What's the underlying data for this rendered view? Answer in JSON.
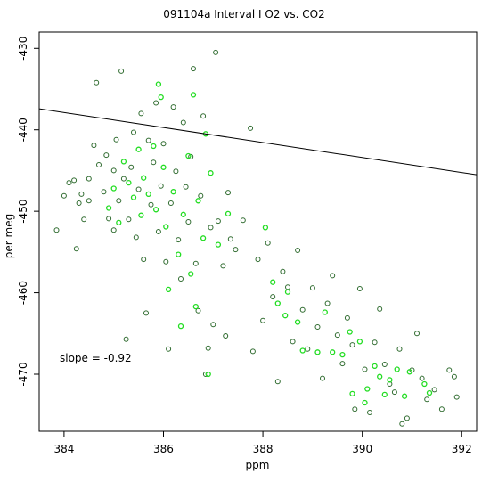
{
  "chart_data": {
    "type": "scatter",
    "title": "091104a   Interval I O2 vs. CO2",
    "xlabel": "ppm",
    "ylabel": "per meg",
    "xlim": [
      383.5,
      392.3
    ],
    "ylim": [
      -477,
      -428
    ],
    "xticks": [
      384,
      386,
      388,
      390,
      392
    ],
    "yticks": [
      -430,
      -440,
      -450,
      -460,
      -470
    ],
    "grid": false,
    "legend": "none",
    "annotation": "slope =  -0.92",
    "fit_line": {
      "slope": -0.92,
      "intercept": -84.6
    },
    "colors": {
      "dark_points": "#2f6b2f",
      "bright_points": "#22dd22",
      "fit_line": "#000000",
      "axes": "#000000"
    },
    "series": [
      {
        "color": "dark",
        "points": [
          [
            383.85,
            -452.3
          ],
          [
            384.0,
            -448.1
          ],
          [
            384.1,
            -446.5
          ],
          [
            384.2,
            -446.2
          ],
          [
            384.25,
            -454.6
          ],
          [
            384.3,
            -449.0
          ],
          [
            384.35,
            -447.9
          ],
          [
            384.4,
            -451.0
          ],
          [
            384.5,
            -446.0
          ],
          [
            384.5,
            -448.7
          ],
          [
            384.6,
            -441.9
          ],
          [
            384.65,
            -434.2
          ],
          [
            384.7,
            -444.3
          ],
          [
            384.8,
            -447.6
          ],
          [
            384.85,
            -443.1
          ],
          [
            384.9,
            -450.9
          ],
          [
            385.0,
            -445.0
          ],
          [
            385.0,
            -452.3
          ],
          [
            385.05,
            -441.2
          ],
          [
            385.1,
            -448.7
          ],
          [
            385.15,
            -432.8
          ],
          [
            385.2,
            -446.0
          ],
          [
            385.25,
            -465.7
          ],
          [
            385.3,
            -451.0
          ],
          [
            385.35,
            -444.6
          ],
          [
            385.4,
            -440.3
          ],
          [
            385.45,
            -453.2
          ],
          [
            385.5,
            -447.3
          ],
          [
            385.55,
            -438.0
          ],
          [
            385.6,
            -455.9
          ],
          [
            385.65,
            -462.5
          ],
          [
            385.7,
            -441.3
          ],
          [
            385.75,
            -449.2
          ],
          [
            385.8,
            -444.0
          ],
          [
            385.85,
            -436.7
          ],
          [
            385.9,
            -452.5
          ],
          [
            385.95,
            -446.9
          ],
          [
            386.0,
            -441.7
          ],
          [
            386.05,
            -456.2
          ],
          [
            386.1,
            -466.9
          ],
          [
            386.15,
            -449.0
          ],
          [
            386.2,
            -437.2
          ],
          [
            386.25,
            -445.1
          ],
          [
            386.3,
            -453.5
          ],
          [
            386.35,
            -458.3
          ],
          [
            386.4,
            -439.1
          ],
          [
            386.45,
            -447.0
          ],
          [
            386.5,
            -451.3
          ],
          [
            386.55,
            -443.3
          ],
          [
            386.6,
            -432.5
          ],
          [
            386.65,
            -456.4
          ],
          [
            386.7,
            -462.2
          ],
          [
            386.75,
            -448.1
          ],
          [
            386.8,
            -438.3
          ],
          [
            386.85,
            -470.0
          ],
          [
            386.9,
            -466.8
          ],
          [
            386.95,
            -452.0
          ],
          [
            387.0,
            -463.9
          ],
          [
            387.05,
            -430.5
          ],
          [
            387.1,
            -451.2
          ],
          [
            387.2,
            -456.7
          ],
          [
            387.25,
            -465.3
          ],
          [
            387.3,
            -447.7
          ],
          [
            387.35,
            -453.4
          ],
          [
            387.45,
            -454.7
          ],
          [
            387.6,
            -451.1
          ],
          [
            387.75,
            -439.8
          ],
          [
            387.8,
            -467.2
          ],
          [
            387.9,
            -455.9
          ],
          [
            388.0,
            -463.4
          ],
          [
            388.1,
            -453.9
          ],
          [
            388.2,
            -460.5
          ],
          [
            388.3,
            -470.9
          ],
          [
            388.4,
            -457.4
          ],
          [
            388.5,
            -459.3
          ],
          [
            388.6,
            -466.0
          ],
          [
            388.7,
            -454.8
          ],
          [
            388.8,
            -462.1
          ],
          [
            388.9,
            -466.9
          ],
          [
            389.0,
            -459.4
          ],
          [
            389.1,
            -464.2
          ],
          [
            389.2,
            -470.5
          ],
          [
            389.3,
            -461.3
          ],
          [
            389.4,
            -457.9
          ],
          [
            389.5,
            -465.2
          ],
          [
            389.6,
            -468.7
          ],
          [
            389.7,
            -463.1
          ],
          [
            389.8,
            -466.4
          ],
          [
            389.85,
            -474.3
          ],
          [
            389.95,
            -459.5
          ],
          [
            390.05,
            -469.4
          ],
          [
            390.15,
            -474.7
          ],
          [
            390.25,
            -466.1
          ],
          [
            390.35,
            -462.0
          ],
          [
            390.45,
            -468.8
          ],
          [
            390.55,
            -471.2
          ],
          [
            390.65,
            -472.2
          ],
          [
            390.75,
            -466.9
          ],
          [
            390.8,
            -476.1
          ],
          [
            390.9,
            -475.4
          ],
          [
            391.0,
            -469.5
          ],
          [
            391.1,
            -465.0
          ],
          [
            391.2,
            -470.5
          ],
          [
            391.3,
            -473.1
          ],
          [
            391.45,
            -471.9
          ],
          [
            391.6,
            -474.3
          ],
          [
            391.75,
            -469.5
          ],
          [
            391.85,
            -470.3
          ],
          [
            391.9,
            -472.8
          ]
        ]
      },
      {
        "color": "bright",
        "points": [
          [
            384.9,
            -449.6
          ],
          [
            385.0,
            -447.2
          ],
          [
            385.1,
            -451.4
          ],
          [
            385.2,
            -443.9
          ],
          [
            385.3,
            -446.5
          ],
          [
            385.4,
            -448.3
          ],
          [
            385.5,
            -442.4
          ],
          [
            385.55,
            -450.5
          ],
          [
            385.6,
            -445.9
          ],
          [
            385.7,
            -447.9
          ],
          [
            385.8,
            -442.0
          ],
          [
            385.85,
            -449.8
          ],
          [
            385.9,
            -434.4
          ],
          [
            385.95,
            -436.0
          ],
          [
            386.0,
            -444.6
          ],
          [
            386.05,
            -451.9
          ],
          [
            386.1,
            -459.6
          ],
          [
            386.2,
            -447.6
          ],
          [
            386.3,
            -455.3
          ],
          [
            386.35,
            -464.1
          ],
          [
            386.4,
            -450.4
          ],
          [
            386.5,
            -443.2
          ],
          [
            386.55,
            -457.7
          ],
          [
            386.6,
            -435.7
          ],
          [
            386.65,
            -461.7
          ],
          [
            386.7,
            -448.7
          ],
          [
            386.8,
            -453.3
          ],
          [
            386.85,
            -440.5
          ],
          [
            386.9,
            -470.0
          ],
          [
            386.95,
            -445.3
          ],
          [
            387.1,
            -454.1
          ],
          [
            387.3,
            -450.3
          ],
          [
            388.05,
            -452.0
          ],
          [
            388.2,
            -458.7
          ],
          [
            388.3,
            -461.3
          ],
          [
            388.45,
            -462.8
          ],
          [
            388.5,
            -459.9
          ],
          [
            388.7,
            -463.6
          ],
          [
            388.8,
            -467.1
          ],
          [
            389.1,
            -467.3
          ],
          [
            389.25,
            -462.4
          ],
          [
            389.4,
            -467.3
          ],
          [
            389.6,
            -467.6
          ],
          [
            389.75,
            -464.8
          ],
          [
            389.8,
            -472.4
          ],
          [
            389.95,
            -466.0
          ],
          [
            390.05,
            -473.5
          ],
          [
            390.1,
            -471.8
          ],
          [
            390.25,
            -469.0
          ],
          [
            390.35,
            -470.3
          ],
          [
            390.45,
            -472.5
          ],
          [
            390.55,
            -470.7
          ],
          [
            390.7,
            -469.4
          ],
          [
            390.85,
            -472.7
          ],
          [
            390.95,
            -469.7
          ],
          [
            391.25,
            -471.2
          ],
          [
            391.35,
            -472.3
          ]
        ]
      }
    ]
  }
}
